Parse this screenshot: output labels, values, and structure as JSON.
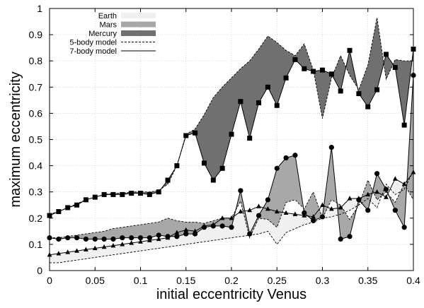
{
  "chart_data": {
    "type": "line",
    "title": "",
    "xlabel": "initial eccentricity Venus",
    "ylabel": "maximum eccentricity",
    "xlim": [
      0,
      0.4
    ],
    "ylim": [
      0,
      1
    ],
    "xticks": [
      0,
      0.05,
      0.1,
      0.15,
      0.2,
      0.25,
      0.3,
      0.35,
      0.4
    ],
    "yticks": [
      0,
      0.1,
      0.2,
      0.3,
      0.4,
      0.5,
      0.6,
      0.7,
      0.8,
      0.9,
      1
    ],
    "xtick_labels": [
      "0",
      "0.05",
      "0.1",
      "0.15",
      "0.2",
      "0.25",
      "0.3",
      "0.35",
      "0.4"
    ],
    "ytick_labels": [
      "0",
      "0.1",
      "0.2",
      "0.3",
      "0.4",
      "0.5",
      "0.6",
      "0.7",
      "0.8",
      "0.9",
      "1"
    ],
    "grid": true,
    "legend_position": "top-left",
    "legend": [
      {
        "label": "Earth",
        "kind": "band",
        "color": "#f0f0f0"
      },
      {
        "label": "Mars",
        "kind": "band",
        "color": "#a8a8a8"
      },
      {
        "label": "Mercury",
        "kind": "band",
        "color": "#707070"
      },
      {
        "label": "5-body model",
        "kind": "dashed-line",
        "color": "#000000"
      },
      {
        "label": "7-body model",
        "kind": "solid-line",
        "color": "#000000"
      }
    ],
    "colors": {
      "earth_fill": "#f0f0f0",
      "mars_fill": "#a8a8a8",
      "mercury_fill": "#707070",
      "line": "#000000",
      "grid": "#bfbfbf"
    },
    "series": [
      {
        "band": "Mercury",
        "model": "7-body model",
        "marker": "square",
        "x": [
          0,
          0.01,
          0.02,
          0.03,
          0.04,
          0.05,
          0.06,
          0.07,
          0.08,
          0.09,
          0.1,
          0.11,
          0.12,
          0.13,
          0.14,
          0.15,
          0.16,
          0.17,
          0.18,
          0.19,
          0.2,
          0.21,
          0.22,
          0.23,
          0.24,
          0.25,
          0.26,
          0.27,
          0.28,
          0.29,
          0.3,
          0.31,
          0.32,
          0.33,
          0.34,
          0.35,
          0.36,
          0.37,
          0.38,
          0.39,
          0.4
        ],
        "y": [
          0.21,
          0.225,
          0.24,
          0.25,
          0.27,
          0.28,
          0.29,
          0.29,
          0.29,
          0.295,
          0.295,
          0.29,
          0.3,
          0.345,
          0.4,
          0.515,
          0.525,
          0.41,
          0.345,
          0.39,
          0.52,
          0.645,
          0.505,
          0.64,
          0.7,
          0.63,
          0.735,
          0.805,
          0.77,
          0.76,
          0.765,
          0.75,
          0.685,
          0.84,
          0.675,
          0.625,
          0.69,
          0.825,
          0.775,
          0.555,
          0.845
        ]
      },
      {
        "band": "Mercury",
        "model": "5-body model",
        "marker": "none",
        "x": [
          0,
          0.01,
          0.02,
          0.03,
          0.04,
          0.05,
          0.06,
          0.07,
          0.08,
          0.09,
          0.1,
          0.11,
          0.12,
          0.13,
          0.14,
          0.15,
          0.16,
          0.17,
          0.18,
          0.19,
          0.2,
          0.21,
          0.22,
          0.23,
          0.24,
          0.25,
          0.26,
          0.27,
          0.28,
          0.29,
          0.3,
          0.31,
          0.32,
          0.33,
          0.34,
          0.35,
          0.36,
          0.37,
          0.38,
          0.39,
          0.4
        ],
        "y": [
          0.215,
          0.225,
          0.24,
          0.255,
          0.27,
          0.28,
          0.29,
          0.295,
          0.295,
          0.3,
          0.3,
          0.3,
          0.305,
          0.33,
          0.4,
          0.52,
          0.54,
          0.595,
          0.66,
          0.7,
          0.735,
          0.77,
          0.8,
          0.845,
          0.895,
          0.87,
          0.84,
          0.82,
          0.865,
          0.765,
          0.58,
          0.735,
          0.82,
          0.745,
          0.69,
          0.785,
          0.965,
          0.73,
          0.805,
          0.8,
          0.8
        ]
      },
      {
        "band": "Mars",
        "model": "7-body model",
        "marker": "circle",
        "x": [
          0,
          0.01,
          0.02,
          0.03,
          0.04,
          0.05,
          0.06,
          0.07,
          0.08,
          0.09,
          0.1,
          0.11,
          0.12,
          0.13,
          0.14,
          0.15,
          0.16,
          0.17,
          0.18,
          0.19,
          0.2,
          0.21,
          0.22,
          0.23,
          0.24,
          0.25,
          0.26,
          0.27,
          0.28,
          0.29,
          0.3,
          0.31,
          0.32,
          0.33,
          0.34,
          0.35,
          0.36,
          0.37,
          0.38,
          0.39,
          0.4
        ],
        "y": [
          0.125,
          0.12,
          0.125,
          0.125,
          0.12,
          0.12,
          0.12,
          0.12,
          0.125,
          0.125,
          0.125,
          0.125,
          0.135,
          0.13,
          0.13,
          0.14,
          0.14,
          0.165,
          0.17,
          0.17,
          0.165,
          0.305,
          0.14,
          0.21,
          0.27,
          0.39,
          0.43,
          0.44,
          0.22,
          0.19,
          0.205,
          0.47,
          0.12,
          0.13,
          0.27,
          0.23,
          0.37,
          0.31,
          0.23,
          0.165,
          0.745
        ]
      },
      {
        "band": "Mars",
        "model": "5-body model",
        "marker": "none",
        "x": [
          0,
          0.01,
          0.02,
          0.03,
          0.04,
          0.05,
          0.06,
          0.07,
          0.08,
          0.09,
          0.1,
          0.11,
          0.12,
          0.13,
          0.14,
          0.15,
          0.16,
          0.17,
          0.18,
          0.19,
          0.2,
          0.21,
          0.22,
          0.23,
          0.24,
          0.25,
          0.26,
          0.27,
          0.28,
          0.29,
          0.3,
          0.31,
          0.32,
          0.33,
          0.34,
          0.35,
          0.36,
          0.37,
          0.38,
          0.39,
          0.4
        ],
        "y": [
          0.125,
          0.125,
          0.13,
          0.135,
          0.14,
          0.145,
          0.15,
          0.16,
          0.165,
          0.17,
          0.175,
          0.18,
          0.185,
          0.2,
          0.19,
          0.185,
          0.185,
          0.18,
          0.19,
          0.2,
          0.2,
          0.265,
          0.125,
          0.2,
          0.195,
          0.165,
          0.26,
          0.27,
          0.235,
          0.3,
          0.2,
          0.27,
          0.25,
          0.195,
          0.25,
          0.345,
          0.27,
          0.3,
          0.26,
          0.33,
          0.27
        ]
      },
      {
        "band": "Earth",
        "model": "7-body model",
        "marker": "triangle",
        "x": [
          0,
          0.01,
          0.02,
          0.03,
          0.04,
          0.05,
          0.06,
          0.07,
          0.08,
          0.09,
          0.1,
          0.11,
          0.12,
          0.13,
          0.14,
          0.15,
          0.16,
          0.17,
          0.18,
          0.19,
          0.2,
          0.21,
          0.22,
          0.23,
          0.24,
          0.25,
          0.26,
          0.27,
          0.28,
          0.29,
          0.3,
          0.31,
          0.32,
          0.33,
          0.34,
          0.35,
          0.36,
          0.37,
          0.38,
          0.39,
          0.4
        ],
        "y": [
          0.06,
          0.065,
          0.07,
          0.075,
          0.08,
          0.085,
          0.09,
          0.095,
          0.1,
          0.105,
          0.11,
          0.115,
          0.12,
          0.125,
          0.145,
          0.155,
          0.15,
          0.17,
          0.175,
          0.2,
          0.2,
          0.225,
          0.23,
          0.245,
          0.235,
          0.225,
          0.22,
          0.215,
          0.21,
          0.205,
          0.25,
          0.235,
          0.24,
          0.275,
          0.275,
          0.29,
          0.3,
          0.28,
          0.35,
          0.33,
          0.375
        ]
      },
      {
        "band": "Earth",
        "model": "5-body model",
        "marker": "none",
        "x": [
          0,
          0.01,
          0.02,
          0.03,
          0.04,
          0.05,
          0.06,
          0.07,
          0.08,
          0.09,
          0.1,
          0.11,
          0.12,
          0.13,
          0.14,
          0.15,
          0.16,
          0.17,
          0.18,
          0.19,
          0.2,
          0.21,
          0.22,
          0.23,
          0.24,
          0.25,
          0.26,
          0.27,
          0.28,
          0.29,
          0.3,
          0.31,
          0.32,
          0.33,
          0.34,
          0.35,
          0.36,
          0.37,
          0.38,
          0.39,
          0.4
        ],
        "y": [
          0.03,
          0.03,
          0.035,
          0.04,
          0.045,
          0.05,
          0.055,
          0.06,
          0.065,
          0.07,
          0.075,
          0.08,
          0.085,
          0.09,
          0.095,
          0.1,
          0.105,
          0.11,
          0.115,
          0.12,
          0.125,
          0.13,
          0.135,
          0.14,
          0.15,
          0.1,
          0.145,
          0.16,
          0.175,
          0.185,
          0.2,
          0.205,
          0.215,
          0.23,
          0.25,
          0.275,
          0.24,
          0.33,
          0.29,
          0.31,
          0.38
        ]
      }
    ]
  }
}
